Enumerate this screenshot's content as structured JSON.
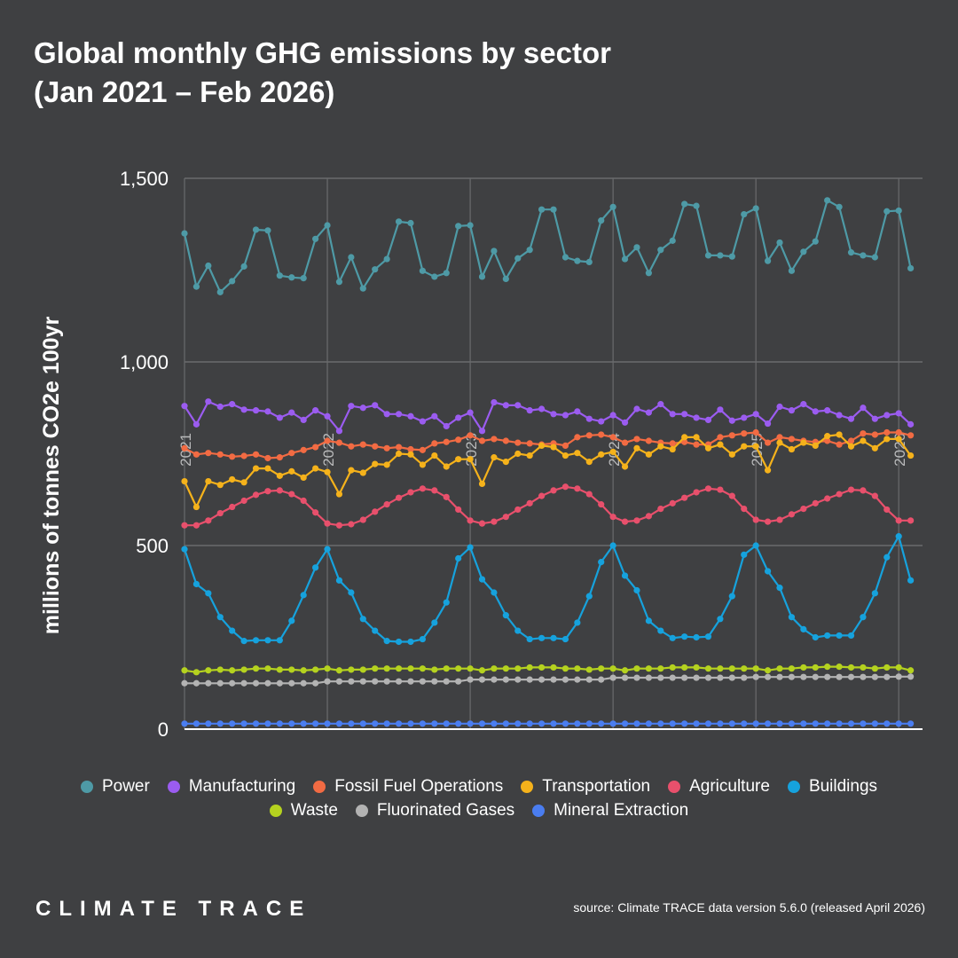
{
  "header": {
    "title_line1": "Global monthly GHG emissions by sector",
    "title_line2": "(Jan 2021 – Feb 2026)"
  },
  "footer": {
    "brand": "CLIMATE TRACE",
    "source": "source: Climate TRACE data version 5.6.0 (released April 2026)"
  },
  "colors": {
    "background": "#3f4042",
    "grid": "#6a6b6d",
    "axis": "#ffffff",
    "year_label": "#b9babb"
  },
  "chart_data": {
    "type": "line",
    "ylabel": "millions of tonnes CO2e 100yr",
    "ylim": [
      0,
      1500
    ],
    "yticks": [
      0,
      500,
      1000,
      1500
    ],
    "ytick_labels": [
      "0",
      "500",
      "1,000",
      "1,500"
    ],
    "x_start": "2021-01",
    "x_end": "2026-02",
    "year_markers": [
      "2021",
      "2022",
      "2023",
      "2024",
      "2025",
      "2026"
    ],
    "legend_position": "bottom",
    "grid": true,
    "series": [
      {
        "name": "Power",
        "color": "#4e9aa6",
        "values": [
          1350,
          1205,
          1262,
          1190,
          1220,
          1260,
          1360,
          1358,
          1235,
          1230,
          1228,
          1335,
          1372,
          1218,
          1285,
          1200,
          1252,
          1280,
          1382,
          1378,
          1248,
          1232,
          1242,
          1370,
          1372,
          1232,
          1302,
          1226,
          1282,
          1305,
          1415,
          1415,
          1285,
          1275,
          1272,
          1385,
          1422,
          1280,
          1312,
          1242,
          1305,
          1330,
          1430,
          1425,
          1290,
          1290,
          1287,
          1402,
          1418,
          1275,
          1325,
          1248,
          1300,
          1328,
          1440,
          1422,
          1298,
          1290,
          1285,
          1410,
          1412,
          1255
        ]
      },
      {
        "name": "Manufacturing",
        "color": "#9b5cf0",
        "values": [
          880,
          830,
          892,
          878,
          885,
          870,
          868,
          865,
          848,
          862,
          842,
          868,
          852,
          812,
          880,
          875,
          882,
          858,
          858,
          852,
          838,
          852,
          825,
          848,
          862,
          812,
          890,
          882,
          882,
          868,
          872,
          858,
          855,
          865,
          845,
          838,
          855,
          835,
          872,
          862,
          885,
          858,
          858,
          848,
          842,
          870,
          840,
          848,
          858,
          832,
          878,
          868,
          885,
          865,
          868,
          855,
          845,
          875,
          845,
          855,
          860,
          830
        ]
      },
      {
        "name": "Fossil Fuel Operations",
        "color": "#f26b43",
        "values": [
          765,
          748,
          752,
          748,
          742,
          744,
          748,
          738,
          740,
          752,
          760,
          768,
          785,
          780,
          770,
          775,
          770,
          765,
          768,
          762,
          760,
          778,
          782,
          788,
          800,
          785,
          790,
          785,
          780,
          778,
          775,
          778,
          772,
          795,
          800,
          802,
          795,
          780,
          790,
          785,
          780,
          778,
          782,
          775,
          775,
          795,
          800,
          805,
          808,
          780,
          795,
          790,
          785,
          782,
          785,
          775,
          785,
          805,
          802,
          808,
          808,
          800
        ]
      },
      {
        "name": "Transportation",
        "color": "#f5b21b",
        "values": [
          675,
          605,
          675,
          665,
          680,
          672,
          710,
          710,
          690,
          702,
          685,
          710,
          700,
          640,
          705,
          698,
          722,
          720,
          750,
          748,
          720,
          745,
          715,
          735,
          735,
          668,
          740,
          728,
          750,
          745,
          772,
          768,
          745,
          752,
          728,
          748,
          755,
          715,
          765,
          748,
          770,
          762,
          795,
          795,
          765,
          775,
          748,
          770,
          770,
          705,
          780,
          762,
          780,
          772,
          798,
          802,
          770,
          785,
          765,
          790,
          790,
          745
        ]
      },
      {
        "name": "Agriculture",
        "color": "#e8506c",
        "values": [
          555,
          555,
          568,
          588,
          605,
          622,
          638,
          648,
          650,
          640,
          622,
          590,
          560,
          555,
          558,
          570,
          592,
          612,
          630,
          645,
          655,
          650,
          632,
          598,
          568,
          560,
          565,
          578,
          598,
          615,
          635,
          650,
          660,
          655,
          640,
          612,
          578,
          565,
          568,
          580,
          600,
          615,
          630,
          645,
          655,
          652,
          635,
          600,
          570,
          565,
          570,
          585,
          600,
          615,
          628,
          640,
          652,
          650,
          635,
          598,
          568,
          568
        ]
      },
      {
        "name": "Buildings",
        "color": "#16a2dd",
        "values": [
          490,
          395,
          370,
          305,
          268,
          240,
          242,
          242,
          242,
          295,
          365,
          440,
          490,
          405,
          372,
          300,
          268,
          240,
          238,
          238,
          245,
          290,
          345,
          465,
          495,
          408,
          372,
          310,
          268,
          245,
          248,
          248,
          245,
          290,
          362,
          455,
          500,
          418,
          378,
          295,
          268,
          248,
          252,
          250,
          252,
          300,
          362,
          475,
          500,
          430,
          385,
          305,
          272,
          250,
          255,
          255,
          255,
          305,
          370,
          468,
          525,
          405
        ]
      },
      {
        "name": "Waste",
        "color": "#b5d21f",
        "values": [
          160,
          155,
          160,
          162,
          160,
          162,
          165,
          165,
          162,
          162,
          160,
          162,
          165,
          160,
          162,
          162,
          165,
          165,
          165,
          165,
          165,
          162,
          165,
          165,
          165,
          160,
          165,
          165,
          165,
          168,
          168,
          168,
          165,
          165,
          162,
          165,
          165,
          160,
          165,
          165,
          165,
          168,
          168,
          168,
          165,
          165,
          165,
          165,
          165,
          160,
          165,
          165,
          168,
          168,
          170,
          170,
          168,
          168,
          165,
          168,
          168,
          160
        ]
      },
      {
        "name": "Fluorinated Gases",
        "color": "#b3b3b3",
        "values": [
          125,
          125,
          125,
          125,
          125,
          125,
          125,
          125,
          125,
          125,
          125,
          125,
          130,
          130,
          130,
          130,
          130,
          130,
          130,
          130,
          130,
          130,
          130,
          130,
          135,
          135,
          135,
          135,
          135,
          135,
          135,
          135,
          135,
          135,
          135,
          135,
          140,
          140,
          140,
          140,
          140,
          140,
          140,
          140,
          140,
          140,
          140,
          140,
          142,
          142,
          142,
          142,
          142,
          142,
          142,
          142,
          142,
          142,
          142,
          142,
          143,
          143
        ]
      },
      {
        "name": "Mineral Extraction",
        "color": "#4a7df0",
        "values": [
          15,
          15,
          15,
          15,
          15,
          15,
          15,
          15,
          15,
          15,
          15,
          15,
          15,
          15,
          15,
          15,
          15,
          15,
          15,
          15,
          15,
          15,
          15,
          15,
          15,
          15,
          15,
          15,
          15,
          15,
          15,
          15,
          15,
          15,
          15,
          15,
          15,
          15,
          15,
          15,
          15,
          15,
          15,
          15,
          15,
          15,
          15,
          15,
          15,
          15,
          15,
          15,
          15,
          15,
          15,
          15,
          15,
          15,
          15,
          15,
          15,
          15
        ]
      }
    ]
  }
}
